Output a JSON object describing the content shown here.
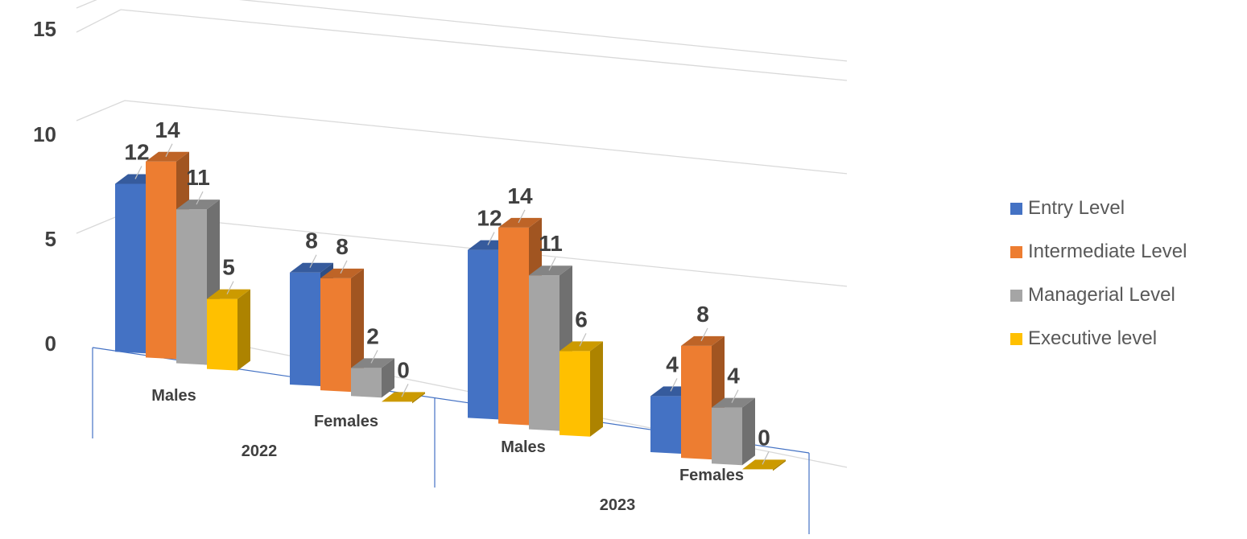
{
  "chart_data": {
    "type": "bar",
    "title": "",
    "xlabel": "",
    "ylabel": "",
    "ylim": [
      0,
      15
    ],
    "y_ticks": [
      "0",
      "5",
      "10",
      "15"
    ],
    "grid": true,
    "legend_position": "right",
    "groups": [
      {
        "label": "2022",
        "categories": [
          "Males",
          "Females"
        ]
      },
      {
        "label": "2023",
        "categories": [
          "Males",
          "Females"
        ]
      }
    ],
    "categories": [
      "Males",
      "Females",
      "Males",
      "Females"
    ],
    "series": [
      {
        "name": "Entry Level",
        "color": "#4472C4",
        "values": [
          12,
          8,
          12,
          4
        ]
      },
      {
        "name": "Intermediate Level",
        "color": "#ED7D31",
        "values": [
          14,
          8,
          14,
          8
        ]
      },
      {
        "name": "Managerial Level",
        "color": "#A5A5A5",
        "values": [
          11,
          2,
          11,
          4
        ]
      },
      {
        "name": "Executive level",
        "color": "#FFC000",
        "values": [
          5,
          0,
          6,
          0
        ]
      }
    ]
  }
}
